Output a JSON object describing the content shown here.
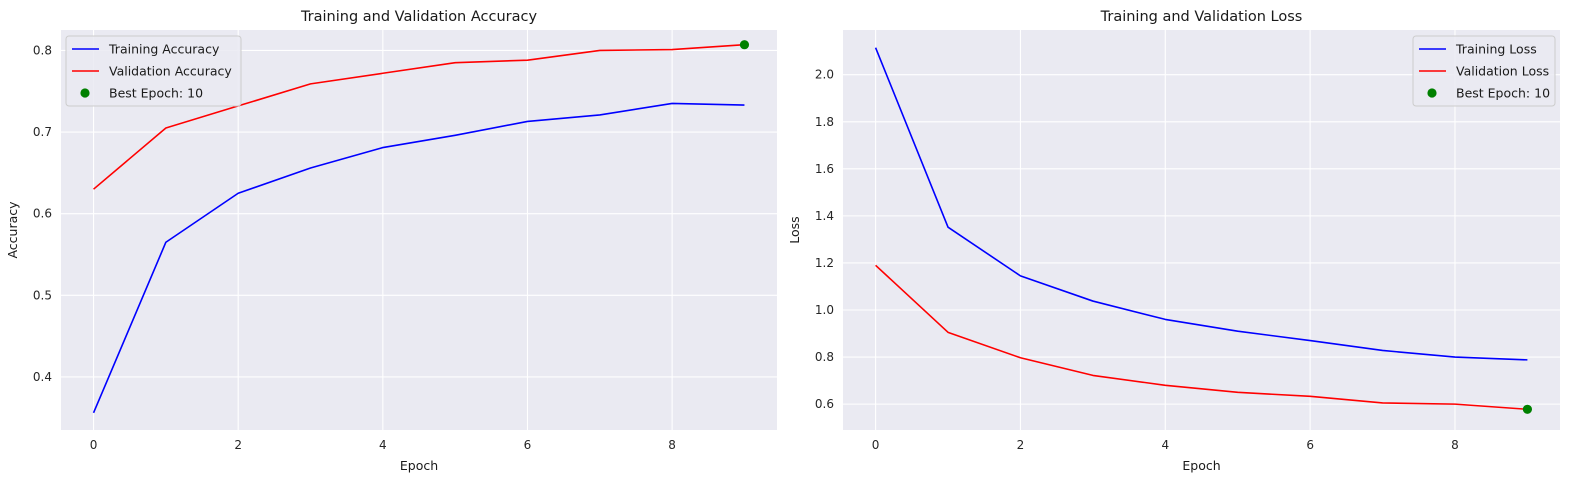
{
  "chart_data": [
    {
      "type": "line",
      "title": "Training and Validation Accuracy",
      "xlabel": "Epoch",
      "ylabel": "Accuracy",
      "x": [
        0,
        1,
        2,
        3,
        4,
        5,
        6,
        7,
        8,
        9
      ],
      "xlim": [
        -0.45,
        9.45
      ],
      "ylim": [
        0.335,
        0.825
      ],
      "xticks": [
        0,
        2,
        4,
        6,
        8
      ],
      "yticks": [
        0.4,
        0.5,
        0.6,
        0.7,
        0.8
      ],
      "xtick_labels": [
        "0",
        "2",
        "4",
        "6",
        "8"
      ],
      "ytick_labels": [
        "0.4",
        "0.5",
        "0.6",
        "0.7",
        "0.8"
      ],
      "grid": true,
      "legend_position": "top-left",
      "series": [
        {
          "name": "Training Accuracy",
          "color": "#0000ff",
          "values": [
            0.356,
            0.565,
            0.625,
            0.656,
            0.681,
            0.696,
            0.713,
            0.721,
            0.735,
            0.733
          ]
        },
        {
          "name": "Validation Accuracy",
          "color": "#ff0000",
          "values": [
            0.63,
            0.705,
            0.732,
            0.759,
            0.772,
            0.785,
            0.788,
            0.8,
            0.801,
            0.807
          ]
        }
      ],
      "marker": {
        "name": "Best Epoch: 10",
        "color": "#008000",
        "x": 9,
        "y": 0.807
      }
    },
    {
      "type": "line",
      "title": "Training and Validation Loss",
      "xlabel": "Epoch",
      "ylabel": "Loss",
      "x": [
        0,
        1,
        2,
        3,
        4,
        5,
        6,
        7,
        8,
        9
      ],
      "xlim": [
        -0.45,
        9.45
      ],
      "ylim": [
        0.49,
        2.19
      ],
      "xticks": [
        0,
        2,
        4,
        6,
        8
      ],
      "yticks": [
        0.6,
        0.8,
        1.0,
        1.2,
        1.4,
        1.6,
        1.8,
        2.0
      ],
      "xtick_labels": [
        "0",
        "2",
        "4",
        "6",
        "8"
      ],
      "ytick_labels": [
        "0.6",
        "0.8",
        "1.0",
        "1.2",
        "1.4",
        "1.6",
        "1.8",
        "2.0"
      ],
      "grid": true,
      "legend_position": "top-right",
      "series": [
        {
          "name": "Training Loss",
          "color": "#0000ff",
          "values": [
            2.115,
            1.352,
            1.145,
            1.038,
            0.96,
            0.91,
            0.87,
            0.828,
            0.8,
            0.788
          ]
        },
        {
          "name": "Validation Loss",
          "color": "#ff0000",
          "values": [
            1.19,
            0.905,
            0.797,
            0.722,
            0.68,
            0.65,
            0.633,
            0.605,
            0.6,
            0.578
          ]
        }
      ],
      "marker": {
        "name": "Best Epoch: 10",
        "color": "#008000",
        "x": 9,
        "y": 0.578
      }
    }
  ]
}
